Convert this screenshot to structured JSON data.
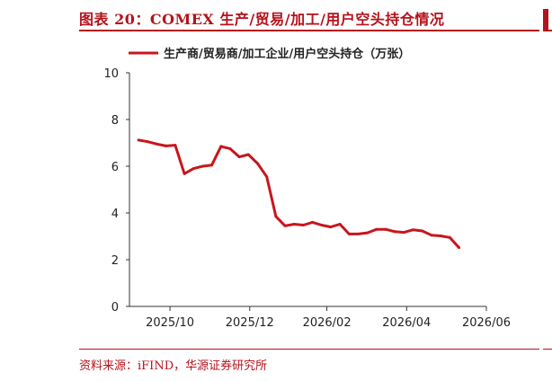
{
  "figure": {
    "title": "图表 20：COMEX 生产/贸易/加工/用户空头持仓情况",
    "source": "资料来源：iFIND，华源证券研究所"
  },
  "colors": {
    "accent": "#b5121b",
    "series": "#c8161d"
  },
  "chart_data": {
    "type": "line",
    "title": "",
    "xlabel": "",
    "ylabel": "",
    "ylim": [
      0,
      10
    ],
    "yticks": [
      0,
      2,
      4,
      6,
      8,
      10
    ],
    "xticks": [
      "2025/10",
      "2025/12",
      "2026/02",
      "2026/04",
      "2026/06"
    ],
    "xlim": [
      "2025-09-30",
      "2026-06-30"
    ],
    "legend_position": "top-center",
    "grid": false,
    "series": [
      {
        "name": "生产商/贸易商/加工企业/用户空头持仓（万张）",
        "points": [
          [
            "2025-10-07",
            7.12
          ],
          [
            "2025-10-14",
            7.05
          ],
          [
            "2025-10-21",
            6.95
          ],
          [
            "2025-10-28",
            6.87
          ],
          [
            "2025-11-04",
            6.9
          ],
          [
            "2025-11-11",
            5.68
          ],
          [
            "2025-11-18",
            5.9
          ],
          [
            "2025-11-25",
            6.0
          ],
          [
            "2025-12-02",
            6.05
          ],
          [
            "2025-12-09",
            6.85
          ],
          [
            "2025-12-16",
            6.75
          ],
          [
            "2025-12-23",
            6.4
          ],
          [
            "2025-12-30",
            6.5
          ],
          [
            "2026-01-06",
            6.12
          ],
          [
            "2026-01-13",
            5.55
          ],
          [
            "2026-01-20",
            3.85
          ],
          [
            "2026-01-27",
            3.45
          ],
          [
            "2026-02-03",
            3.52
          ],
          [
            "2026-02-10",
            3.48
          ],
          [
            "2026-02-17",
            3.6
          ],
          [
            "2026-02-24",
            3.48
          ],
          [
            "2026-03-03",
            3.4
          ],
          [
            "2026-03-10",
            3.52
          ],
          [
            "2026-03-17",
            3.1
          ],
          [
            "2026-03-24",
            3.1
          ],
          [
            "2026-03-31",
            3.15
          ],
          [
            "2026-04-07",
            3.3
          ],
          [
            "2026-04-14",
            3.3
          ],
          [
            "2026-04-21",
            3.2
          ],
          [
            "2026-04-28",
            3.17
          ],
          [
            "2026-05-05",
            3.28
          ],
          [
            "2026-05-12",
            3.23
          ],
          [
            "2026-05-19",
            3.05
          ],
          [
            "2026-05-26",
            3.02
          ],
          [
            "2026-06-02",
            2.95
          ],
          [
            "2026-06-09",
            2.52
          ]
        ]
      }
    ]
  }
}
